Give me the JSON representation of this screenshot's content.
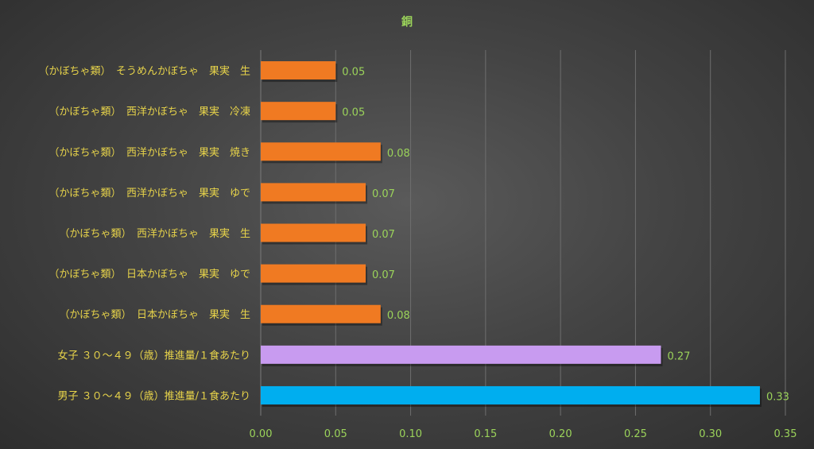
{
  "chart_data": {
    "type": "bar",
    "orientation": "horizontal",
    "title": "銅",
    "xlabel": "",
    "ylabel": "",
    "xlim": [
      0,
      0.35
    ],
    "x_ticks": [
      "0.00",
      "0.05",
      "0.10",
      "0.15",
      "0.20",
      "0.25",
      "0.30",
      "0.35"
    ],
    "grid": true,
    "legend": "none",
    "categories": [
      "（かぼちゃ類）　そうめんかぼちゃ　果実　生",
      "（かぼちゃ類）　西洋かぼちゃ　果実　冷凍",
      "（かぼちゃ類）　西洋かぼちゃ　果実　焼き",
      "（かぼちゃ類）　西洋かぼちゃ　果実　ゆで",
      "（かぼちゃ類）　西洋かぼちゃ　果実　生",
      "（かぼちゃ類）　日本かぼちゃ　果実　ゆで",
      "（かぼちゃ類）　日本かぼちゃ　果実　生",
      "女子 ３０～４９（歳）推進量/１食あたり",
      "男子 ３０～４９（歳）推進量/１食あたり"
    ],
    "values": [
      0.05,
      0.05,
      0.08,
      0.07,
      0.07,
      0.07,
      0.08,
      0.267,
      0.333
    ],
    "data_labels": [
      "0.05",
      "0.05",
      "0.08",
      "0.07",
      "0.07",
      "0.07",
      "0.08",
      "0.27",
      "0.33"
    ],
    "colors": [
      "#f07a22",
      "#f07a22",
      "#f07a22",
      "#f07a22",
      "#f07a22",
      "#f07a22",
      "#f07a22",
      "#c89bf0",
      "#00aeef"
    ]
  }
}
